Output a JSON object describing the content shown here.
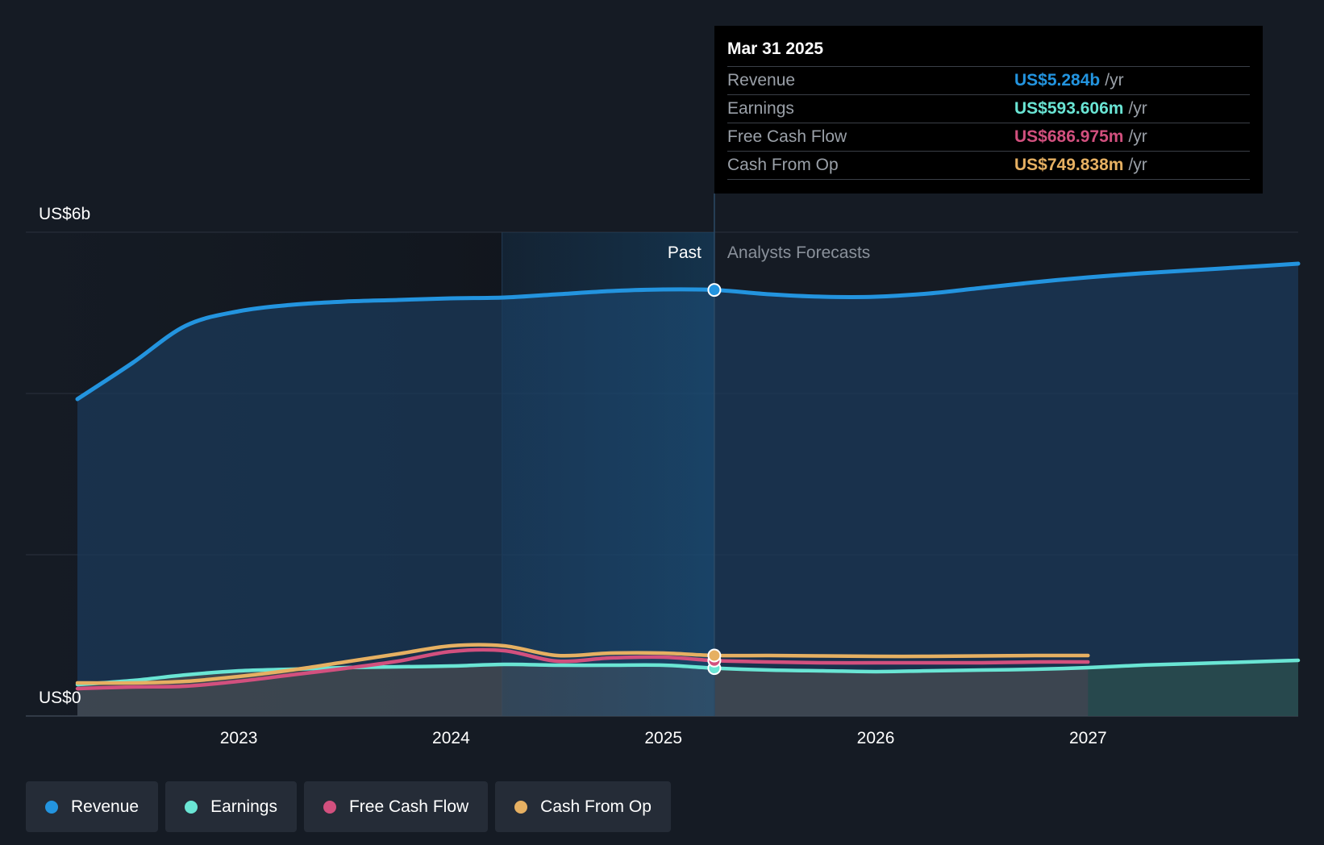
{
  "colors": {
    "revenue": "#2394df",
    "earnings": "#6ae5d4",
    "free_cash_flow": "#d2507e",
    "cash_from_op": "#e6b062",
    "background": "#151b24"
  },
  "tooltip": {
    "date": "Mar 31 2025",
    "rows": [
      {
        "label": "Revenue",
        "value": "US$5.284b",
        "unit": "/yr",
        "color": "#2394df"
      },
      {
        "label": "Earnings",
        "value": "US$593.606m",
        "unit": "/yr",
        "color": "#6ae5d4"
      },
      {
        "label": "Free Cash Flow",
        "value": "US$686.975m",
        "unit": "/yr",
        "color": "#d2507e"
      },
      {
        "label": "Cash From Op",
        "value": "US$749.838m",
        "unit": "/yr",
        "color": "#e6b062"
      }
    ]
  },
  "legend": [
    {
      "label": "Revenue",
      "color": "#2394df"
    },
    {
      "label": "Earnings",
      "color": "#6ae5d4"
    },
    {
      "label": "Free Cash Flow",
      "color": "#d2507e"
    },
    {
      "label": "Cash From Op",
      "color": "#e6b062"
    }
  ],
  "chart_data": {
    "type": "area",
    "title": "",
    "xlabel": "",
    "ylabel": "",
    "y_axis_labels": {
      "top": "US$6b",
      "bottom": "US$0"
    },
    "ylim": [
      0,
      6
    ],
    "xlim": [
      2022.24,
      2027.99
    ],
    "x_ticks": [
      2023,
      2024,
      2025,
      2026,
      2027
    ],
    "gridlines": [
      0,
      2,
      4,
      6
    ],
    "past_label": "Past",
    "forecast_label": "Analysts Forecasts",
    "past_end": 2025.24,
    "highlight_start": 2024.24,
    "series": [
      {
        "name": "Revenue",
        "key": "revenue",
        "color": "#2394df",
        "fill": true,
        "points": [
          [
            2022.24,
            3.93
          ],
          [
            2022.5,
            4.38
          ],
          [
            2022.75,
            4.84
          ],
          [
            2023.0,
            5.02
          ],
          [
            2023.25,
            5.1
          ],
          [
            2023.5,
            5.14
          ],
          [
            2023.75,
            5.16
          ],
          [
            2024.0,
            5.18
          ],
          [
            2024.25,
            5.19
          ],
          [
            2024.5,
            5.23
          ],
          [
            2024.75,
            5.27
          ],
          [
            2025.0,
            5.29
          ],
          [
            2025.24,
            5.284
          ],
          [
            2025.5,
            5.23
          ],
          [
            2025.75,
            5.2
          ],
          [
            2026.0,
            5.2
          ],
          [
            2026.25,
            5.24
          ],
          [
            2026.5,
            5.31
          ],
          [
            2026.75,
            5.38
          ],
          [
            2027.0,
            5.44
          ],
          [
            2027.25,
            5.49
          ],
          [
            2027.5,
            5.53
          ],
          [
            2027.75,
            5.57
          ],
          [
            2027.99,
            5.61
          ]
        ]
      },
      {
        "name": "Earnings",
        "key": "earnings",
        "color": "#6ae5d4",
        "fill": true,
        "points": [
          [
            2022.24,
            0.39
          ],
          [
            2022.5,
            0.44
          ],
          [
            2022.75,
            0.51
          ],
          [
            2023.0,
            0.56
          ],
          [
            2023.25,
            0.58
          ],
          [
            2023.5,
            0.6
          ],
          [
            2023.75,
            0.61
          ],
          [
            2024.0,
            0.62
          ],
          [
            2024.25,
            0.64
          ],
          [
            2024.5,
            0.63
          ],
          [
            2024.75,
            0.63
          ],
          [
            2025.0,
            0.63
          ],
          [
            2025.24,
            0.594
          ],
          [
            2025.5,
            0.57
          ],
          [
            2025.75,
            0.56
          ],
          [
            2026.0,
            0.55
          ],
          [
            2026.25,
            0.56
          ],
          [
            2026.5,
            0.57
          ],
          [
            2026.75,
            0.58
          ],
          [
            2027.0,
            0.6
          ],
          [
            2027.25,
            0.63
          ],
          [
            2027.5,
            0.65
          ],
          [
            2027.75,
            0.67
          ],
          [
            2027.99,
            0.69
          ]
        ]
      },
      {
        "name": "Free Cash Flow",
        "key": "free_cash_flow",
        "color": "#d2507e",
        "fill": false,
        "points": [
          [
            2022.24,
            0.34
          ],
          [
            2022.5,
            0.36
          ],
          [
            2022.75,
            0.37
          ],
          [
            2023.0,
            0.43
          ],
          [
            2023.25,
            0.51
          ],
          [
            2023.5,
            0.59
          ],
          [
            2023.75,
            0.68
          ],
          [
            2024.0,
            0.8
          ],
          [
            2024.25,
            0.81
          ],
          [
            2024.5,
            0.68
          ],
          [
            2024.75,
            0.72
          ],
          [
            2025.0,
            0.73
          ],
          [
            2025.24,
            0.687
          ],
          [
            2025.5,
            0.67
          ],
          [
            2025.75,
            0.66
          ],
          [
            2026.0,
            0.66
          ],
          [
            2026.25,
            0.66
          ],
          [
            2026.5,
            0.66
          ],
          [
            2026.75,
            0.67
          ],
          [
            2027.0,
            0.67
          ]
        ]
      },
      {
        "name": "Cash From Op",
        "key": "cash_from_op",
        "color": "#e6b062",
        "fill": false,
        "points": [
          [
            2022.24,
            0.41
          ],
          [
            2022.5,
            0.41
          ],
          [
            2022.75,
            0.43
          ],
          [
            2023.0,
            0.49
          ],
          [
            2023.25,
            0.57
          ],
          [
            2023.5,
            0.67
          ],
          [
            2023.75,
            0.77
          ],
          [
            2024.0,
            0.87
          ],
          [
            2024.25,
            0.87
          ],
          [
            2024.5,
            0.75
          ],
          [
            2024.75,
            0.78
          ],
          [
            2025.0,
            0.78
          ],
          [
            2025.24,
            0.75
          ],
          [
            2025.5,
            0.75
          ],
          [
            2025.75,
            0.745
          ],
          [
            2026.0,
            0.74
          ],
          [
            2026.25,
            0.74
          ],
          [
            2026.5,
            0.745
          ],
          [
            2026.75,
            0.75
          ],
          [
            2027.0,
            0.75
          ]
        ]
      }
    ]
  }
}
